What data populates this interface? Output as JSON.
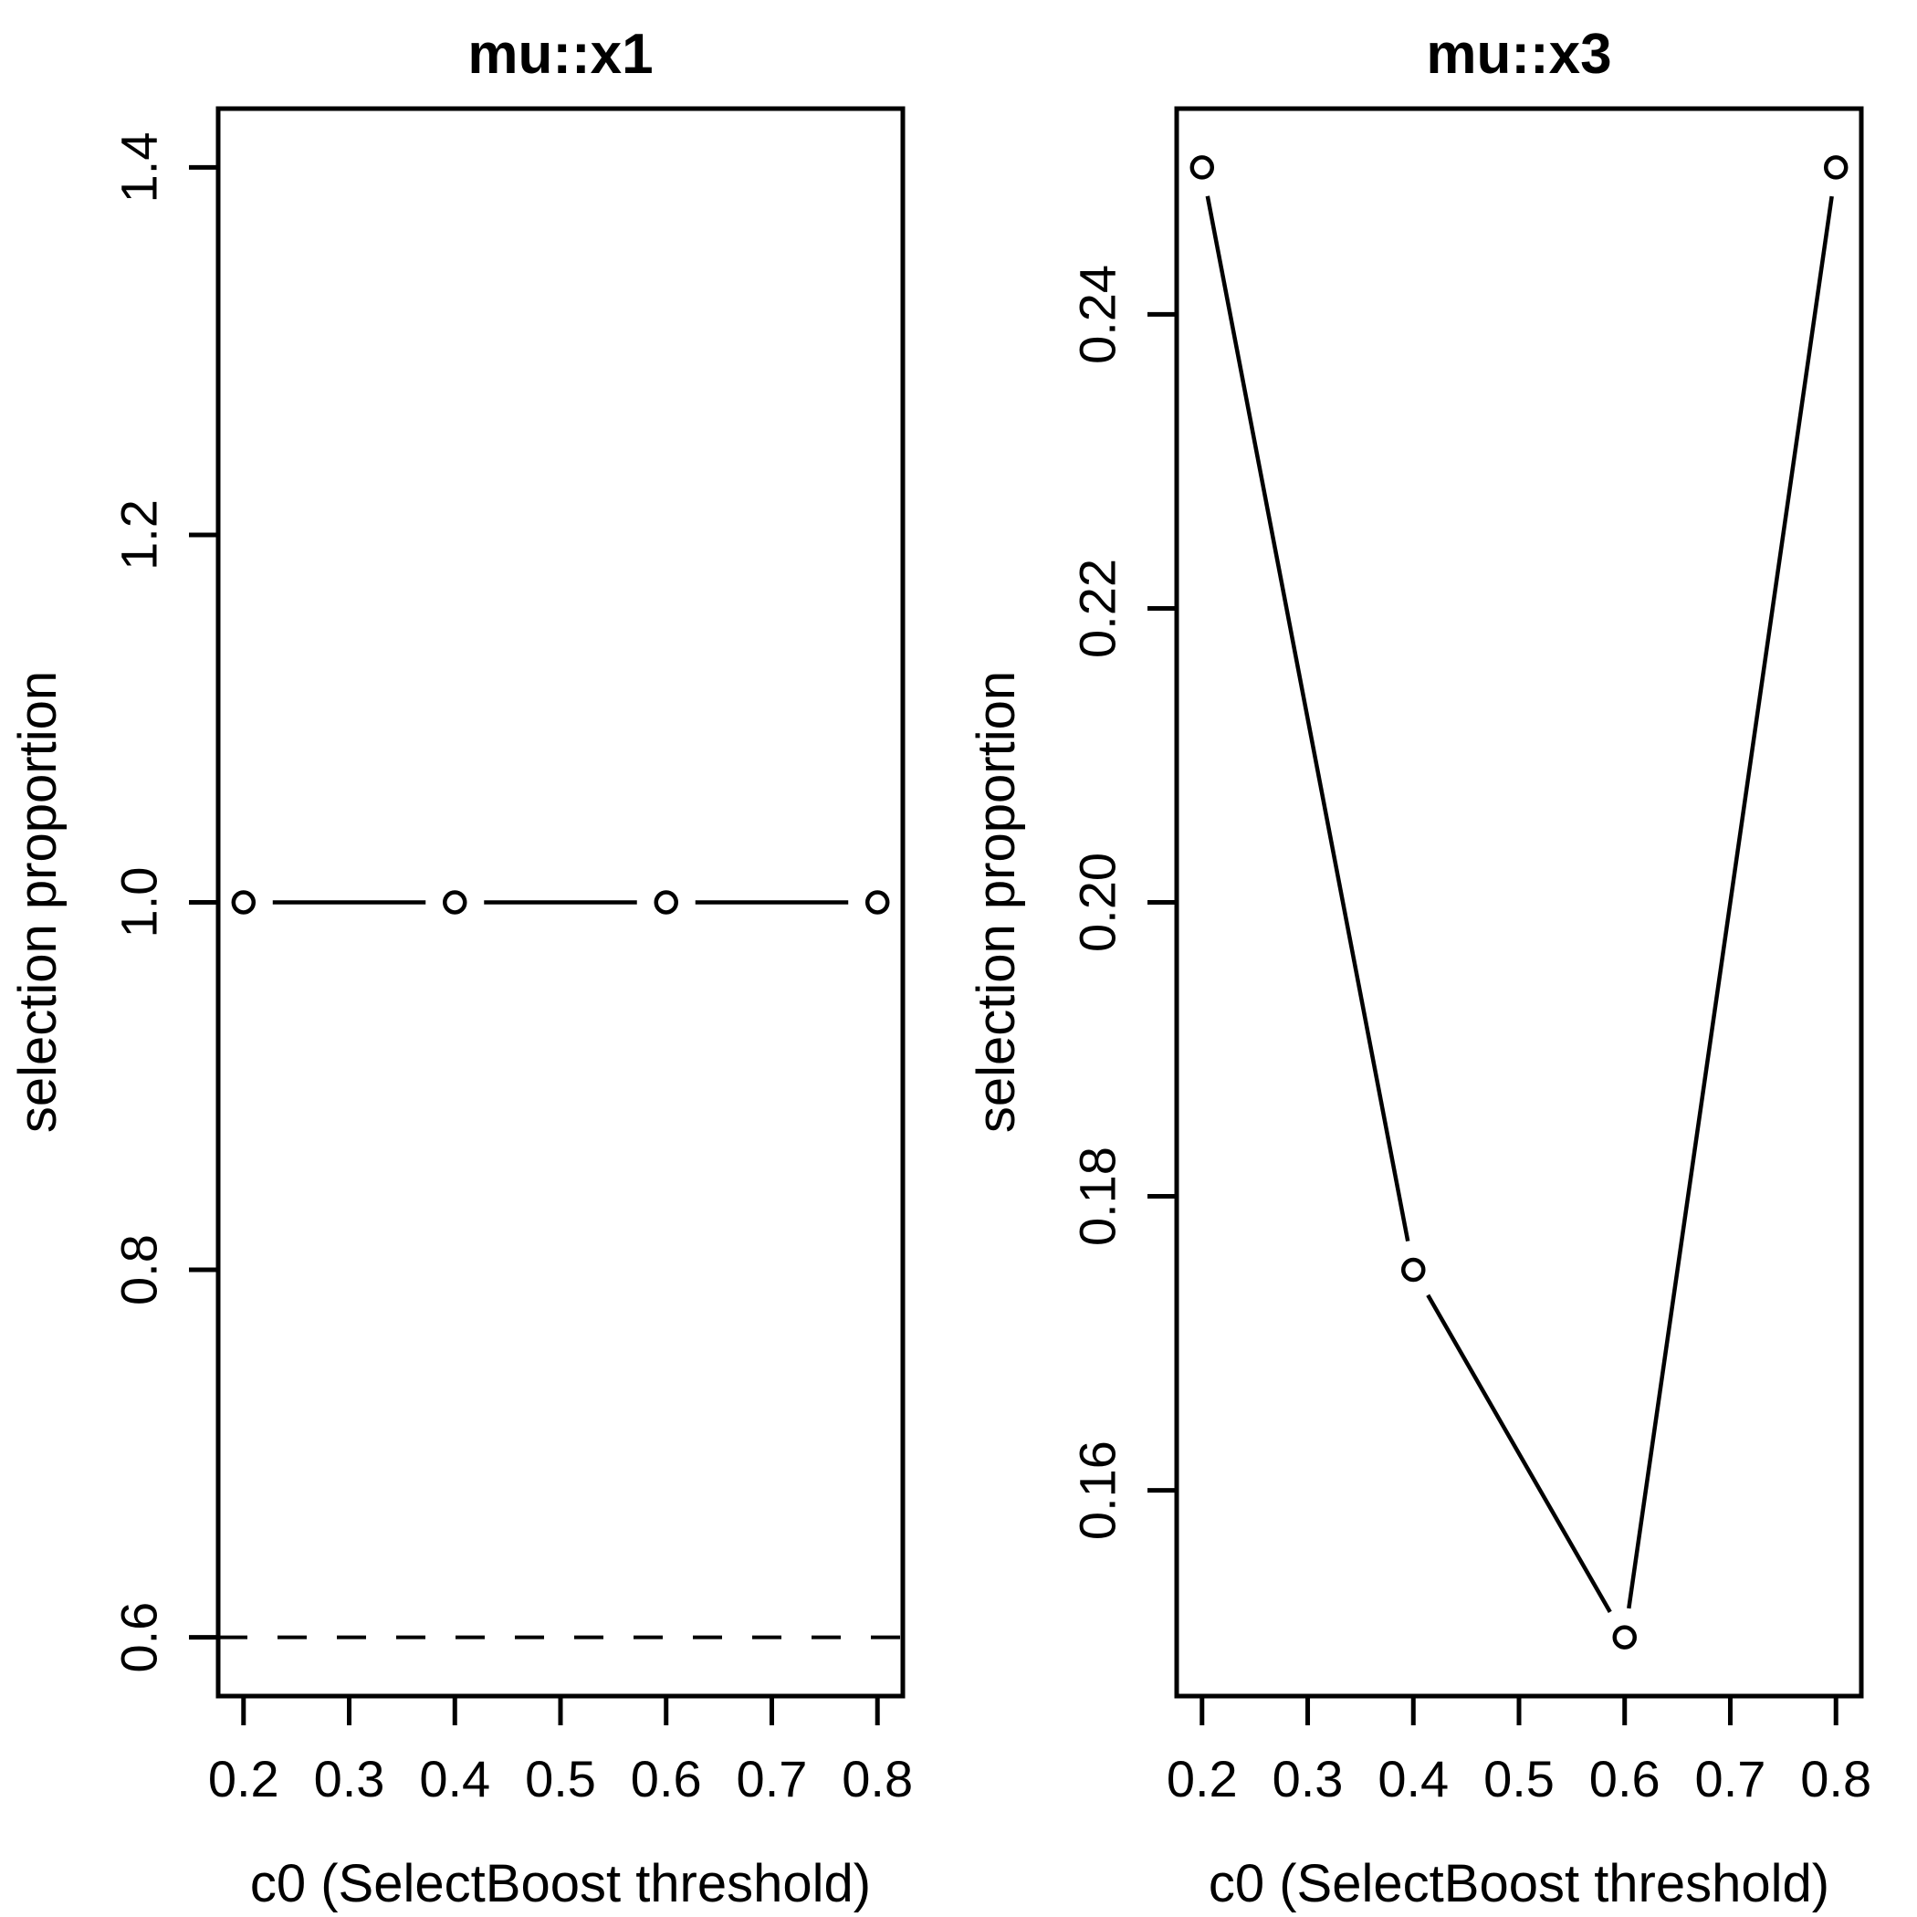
{
  "figure": {
    "background": "#ffffff",
    "ink_color": "#000000"
  },
  "chart_data": [
    {
      "type": "line",
      "panel": "left",
      "title": "mu::x1",
      "xlabel": "c0 (SelectBoost threshold)",
      "ylabel": "selection proportion",
      "x": [
        0.2,
        0.4,
        0.6,
        0.8
      ],
      "y": [
        1.0,
        1.0,
        1.0,
        1.0
      ],
      "marker": "open-circle",
      "plot_style": "points-and-lines",
      "dashed_hline_y": 0.6,
      "xlim": [
        0.176,
        0.824
      ],
      "ylim": [
        0.568,
        1.432
      ],
      "xtick_values": [
        0.2,
        0.3,
        0.4,
        0.5,
        0.6,
        0.7,
        0.8
      ],
      "xtick_labels": [
        "0.2",
        "0.3",
        "0.4",
        "0.5",
        "0.6",
        "0.7",
        "0.8"
      ],
      "ytick_values": [
        0.6,
        0.8,
        1.0,
        1.2,
        1.4
      ],
      "ytick_labels": [
        "0.6",
        "0.8",
        "1.0",
        "1.2",
        "1.4"
      ],
      "grid": false,
      "legend": null,
      "line_color": "#000000"
    },
    {
      "type": "line",
      "panel": "right",
      "title": "mu::x3",
      "xlabel": "c0 (SelectBoost threshold)",
      "ylabel": "selection proportion",
      "x": [
        0.2,
        0.4,
        0.6,
        0.8
      ],
      "y": [
        0.25,
        0.175,
        0.15,
        0.25
      ],
      "marker": "open-circle",
      "plot_style": "points-and-lines",
      "dashed_hline_y": null,
      "xlim": [
        0.176,
        0.824
      ],
      "ylim": [
        0.146,
        0.254
      ],
      "xtick_values": [
        0.2,
        0.3,
        0.4,
        0.5,
        0.6,
        0.7,
        0.8
      ],
      "xtick_labels": [
        "0.2",
        "0.3",
        "0.4",
        "0.5",
        "0.6",
        "0.7",
        "0.8"
      ],
      "ytick_values": [
        0.16,
        0.18,
        0.2,
        0.22,
        0.24
      ],
      "ytick_labels": [
        "0.16",
        "0.18",
        "0.20",
        "0.22",
        "0.24"
      ],
      "grid": false,
      "legend": null,
      "line_color": "#000000"
    }
  ]
}
